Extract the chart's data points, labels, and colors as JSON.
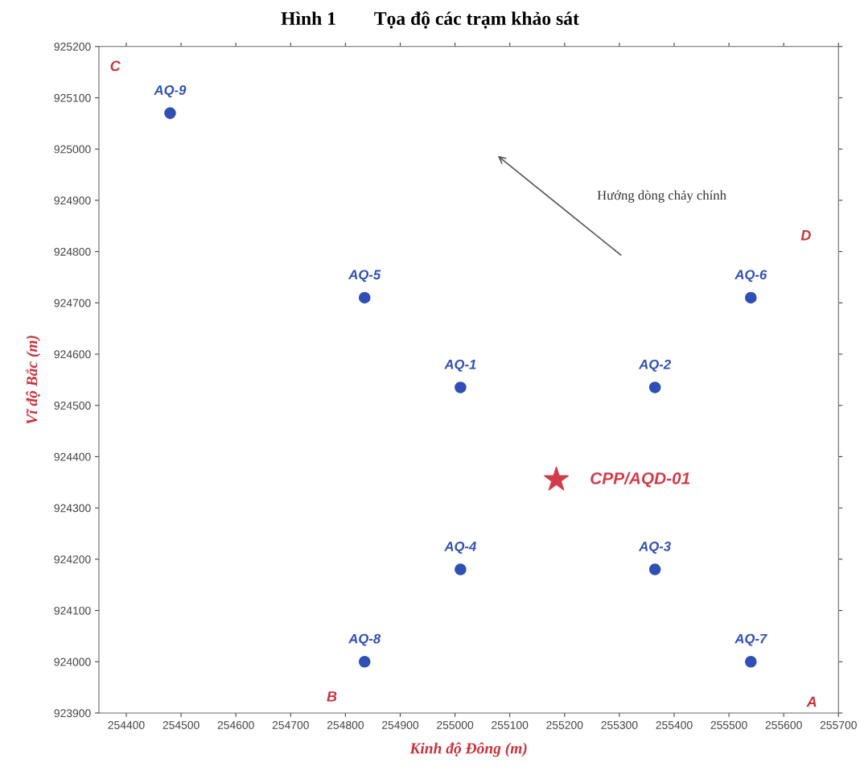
{
  "chart_data": {
    "type": "scatter",
    "title": "Hình 1        Tọa độ các trạm khảo sát",
    "xlabel": "Kinh độ Đông (m)",
    "ylabel": "Vĩ độ Bắc (m)",
    "xlim": [
      254350,
      255700
    ],
    "ylim": [
      923900,
      925200
    ],
    "xticks": [
      254400,
      254500,
      254600,
      254700,
      254800,
      254900,
      255000,
      255100,
      255200,
      255300,
      255400,
      255500,
      255600,
      255700
    ],
    "yticks": [
      923900,
      924000,
      924100,
      924200,
      924300,
      924400,
      924500,
      924600,
      924700,
      924800,
      924900,
      925000,
      925100,
      925200
    ],
    "grid": false,
    "legend": false,
    "marker": "circle",
    "series": [
      {
        "name": "AQ-9",
        "color": "#2f4fb5",
        "x": [
          254480
        ],
        "values": [
          925070
        ]
      },
      {
        "name": "AQ-5",
        "color": "#2f4fb5",
        "x": [
          254835
        ],
        "values": [
          924710
        ]
      },
      {
        "name": "AQ-6",
        "color": "#2f4fb5",
        "x": [
          255540
        ],
        "values": [
          924710
        ]
      },
      {
        "name": "AQ-1",
        "color": "#2f4fb5",
        "x": [
          255010
        ],
        "values": [
          924535
        ]
      },
      {
        "name": "AQ-2",
        "color": "#2f4fb5",
        "x": [
          255365
        ],
        "values": [
          924535
        ]
      },
      {
        "name": "AQ-4",
        "color": "#2f4fb5",
        "x": [
          255010
        ],
        "values": [
          924180
        ]
      },
      {
        "name": "AQ-3",
        "color": "#2f4fb5",
        "x": [
          255365
        ],
        "values": [
          924180
        ]
      },
      {
        "name": "AQ-8",
        "color": "#2f4fb5",
        "x": [
          254835
        ],
        "values": [
          924000
        ]
      },
      {
        "name": "AQ-7",
        "color": "#2f4fb5",
        "x": [
          255540
        ],
        "values": [
          924000
        ]
      },
      {
        "name": "CPP/AQD-01",
        "color": "#d23c4a",
        "marker": "star",
        "x": [
          255185
        ],
        "values": [
          924355
        ]
      }
    ],
    "annotations": [
      "C",
      "D",
      "B",
      "A",
      "Hướng dòng chảy chính"
    ]
  }
}
